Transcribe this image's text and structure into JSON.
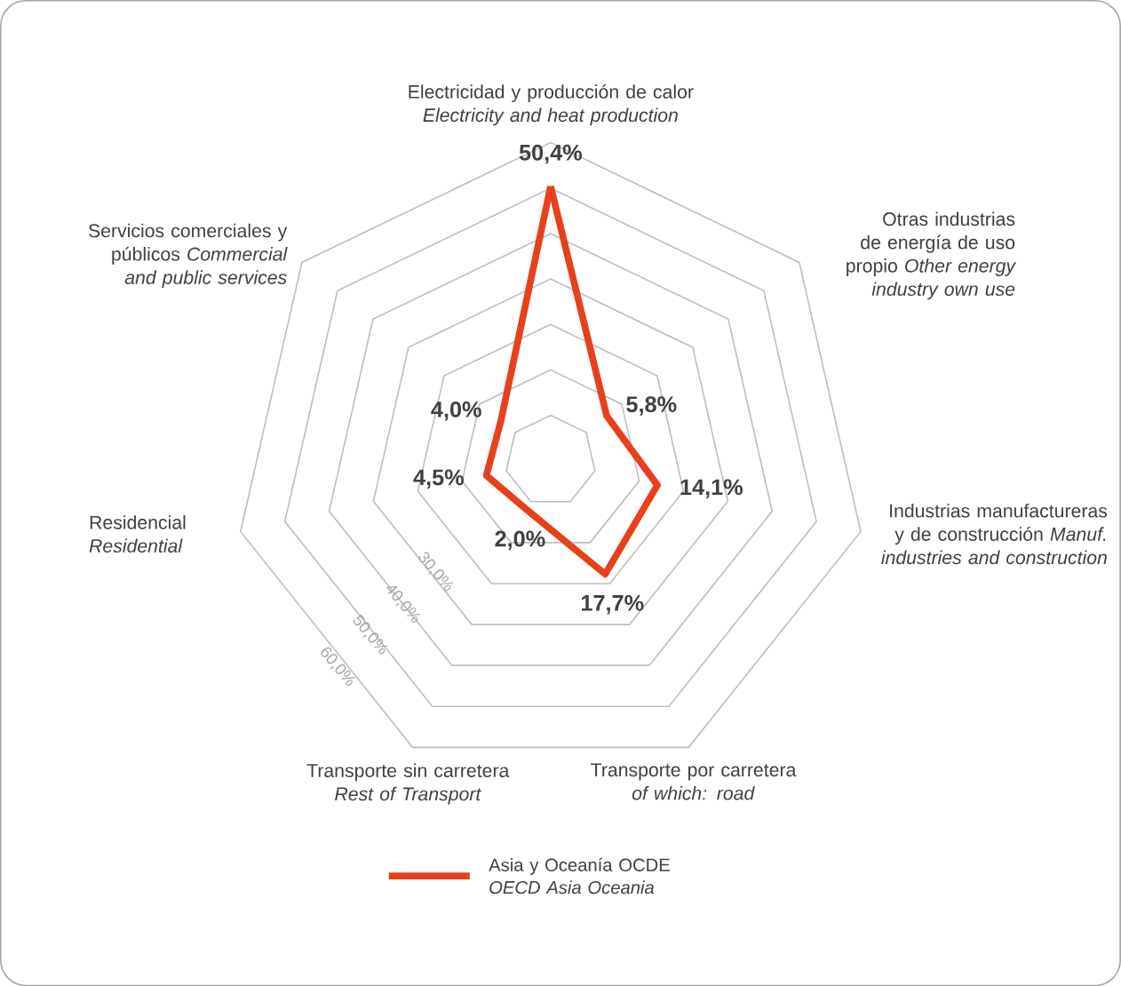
{
  "chart_data": {
    "type": "radar",
    "categories": [
      "Electricidad y producción de calor *Electricity and heat production*",
      "Otras industrias de energía de uso propio *Other energy industry own use*",
      "Industrias manufactureras y de construcción *Manuf. industries and construction*",
      "Transporte por carretera *of which: road*",
      "Transporte sin carretera *Rest of Transport*",
      "Residencial *Residential*",
      "Servicios comerciales y públicos *Commercial and public services*"
    ],
    "series": [
      {
        "name": "Asia y Oceanía OCDE *OECD Asia Oceania*",
        "color": "#e8401c",
        "values": [
          50.4,
          5.8,
          14.1,
          17.7,
          2.0,
          4.5,
          4.0
        ],
        "value_labels": [
          "50,4%",
          "5,8%",
          "14,1%",
          "17,7%",
          "2,0%",
          "4,5%",
          "4,0%"
        ]
      }
    ],
    "ylim": [
      -10,
      60
    ],
    "yticks": [
      {
        "value": 30,
        "label": "30,0%"
      },
      {
        "value": 40,
        "label": "40,0%"
      },
      {
        "value": 50,
        "label": "50,0%"
      },
      {
        "value": 60,
        "label": "60,0%"
      }
    ],
    "grid": true,
    "legend": "bottom"
  }
}
